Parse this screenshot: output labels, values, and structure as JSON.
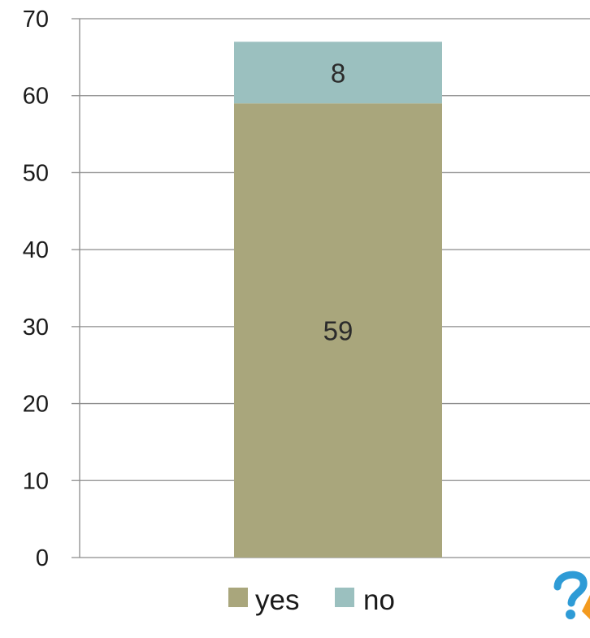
{
  "chart_data": {
    "type": "bar",
    "stacked": true,
    "categories": [
      ""
    ],
    "series": [
      {
        "name": "yes",
        "values": [
          59
        ],
        "color": "#a9a67c"
      },
      {
        "name": "no",
        "values": [
          8
        ],
        "color": "#9bc0bf"
      }
    ],
    "data_labels": [
      "59",
      "8"
    ],
    "ylim": [
      0,
      70
    ],
    "yticks": [
      0,
      10,
      20,
      30,
      40,
      50,
      60,
      70
    ],
    "ytick_labels": [
      "0",
      "10",
      "20",
      "30",
      "40",
      "50",
      "60",
      "70"
    ],
    "grid": true,
    "legend": "bottom",
    "title": "",
    "xlabel": "",
    "ylabel": ""
  },
  "colors": {
    "grid": "#8c8c8c",
    "logo_blue": "#2e9bd6",
    "logo_orange": "#f39a1e"
  },
  "logo": {
    "icon": "question-mark-logo-icon"
  }
}
